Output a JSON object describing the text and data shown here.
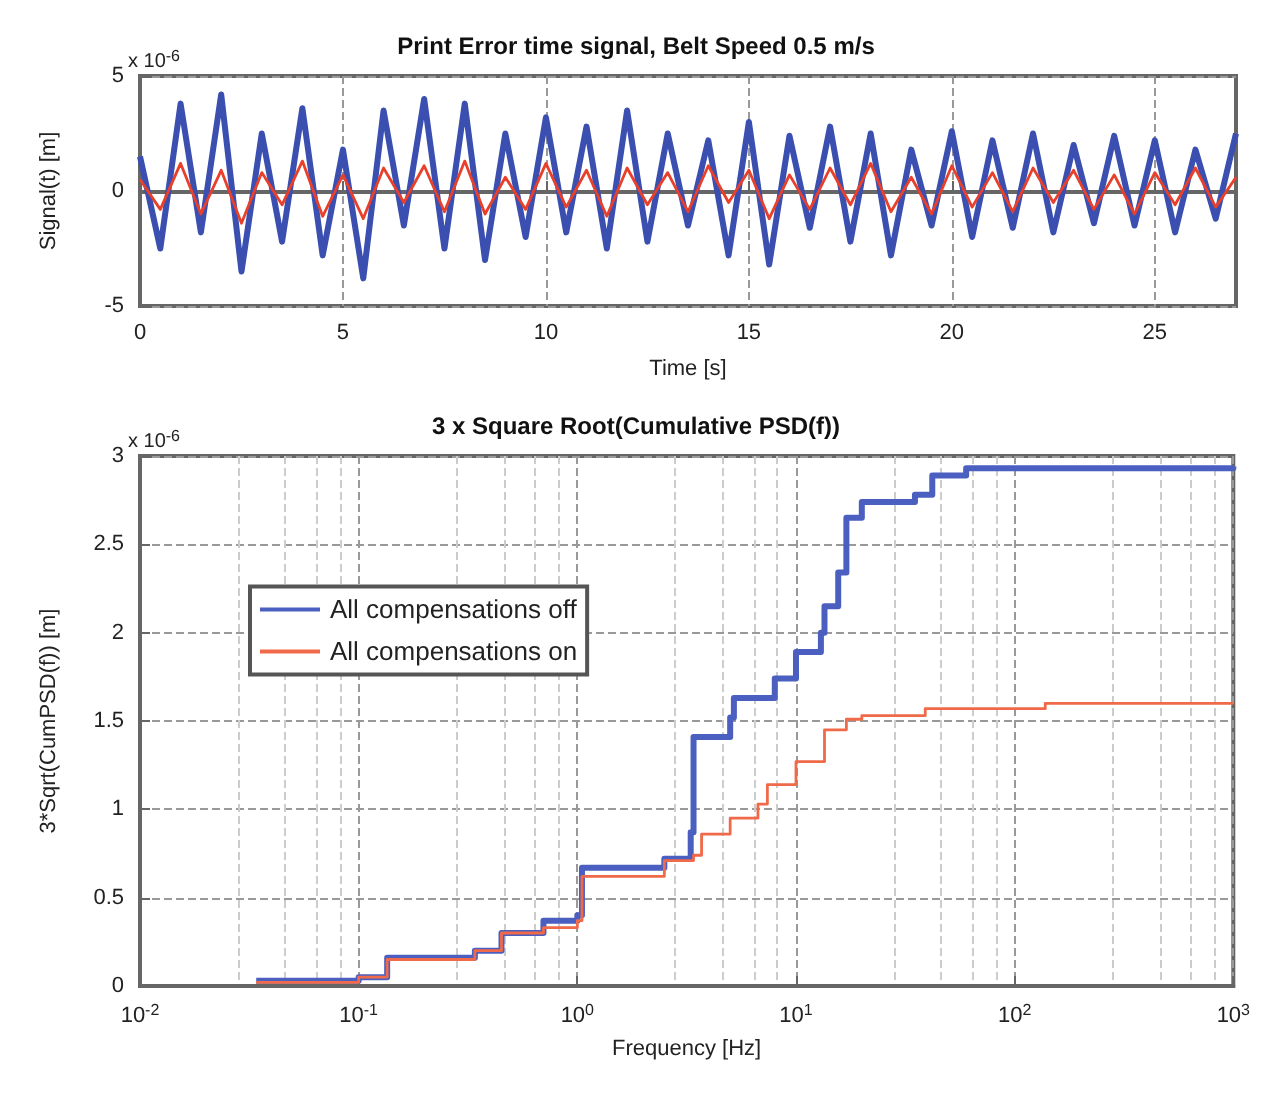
{
  "chart_data": [
    {
      "type": "line",
      "title": "Print Error time signal, Belt Speed 0.5 m/s",
      "xlabel": "Time [s]",
      "ylabel": "Signal(t) [m]",
      "annotations": [
        "x 10$^{-6}$"
      ],
      "x": [
        0,
        0.5,
        1,
        1.5,
        2,
        2.5,
        3,
        3.5,
        4,
        4.5,
        5,
        5.5,
        6,
        6.5,
        7,
        7.5,
        8,
        8.5,
        9,
        9.5,
        10,
        10.5,
        11,
        11.5,
        12,
        12.5,
        13,
        13.5,
        14,
        14.5,
        15,
        15.5,
        16,
        16.5,
        17,
        17.5,
        18,
        18.5,
        19,
        19.5,
        20,
        20.5,
        21,
        21.5,
        22,
        22.5,
        23,
        23.5,
        24,
        24.5,
        25,
        25.5,
        26,
        26.5,
        27
      ],
      "series": [
        {
          "color": "#3a4fb0",
          "values": [
            1.5,
            -2.5,
            3.8,
            -1.8,
            4.2,
            -3.5,
            2.5,
            -2.2,
            3.6,
            -2.8,
            1.8,
            -3.8,
            3.5,
            -1.5,
            4,
            -2.5,
            3.8,
            -3,
            2.5,
            -2,
            3.2,
            -1.8,
            2.8,
            -2.5,
            3.5,
            -2.2,
            2.5,
            -1.5,
            2.2,
            -2.8,
            3,
            -3.2,
            2.4,
            -1.6,
            2.8,
            -2.2,
            2.5,
            -2.8,
            1.8,
            -1.5,
            2.6,
            -2,
            2.2,
            -1.6,
            2.5,
            -1.8,
            2,
            -1.4,
            2.4,
            -1.5,
            2.2,
            -1.8,
            1.8,
            -1.2,
            2.5
          ]
        },
        {
          "color": "#e8402a",
          "values": [
            0.5,
            -0.8,
            1.2,
            -1,
            0.9,
            -1.4,
            0.8,
            -0.6,
            1.3,
            -1.1,
            0.7,
            -1.2,
            1,
            -0.5,
            1.1,
            -0.9,
            1.3,
            -1,
            0.6,
            -0.8,
            1.2,
            -0.7,
            0.9,
            -1.1,
            1,
            -0.6,
            0.8,
            -0.9,
            1.1,
            -0.5,
            0.9,
            -1.2,
            0.7,
            -0.8,
            1,
            -0.6,
            1.2,
            -0.9,
            0.6,
            -1,
            1.1,
            -0.7,
            0.8,
            -0.9,
            1,
            -0.5,
            0.9,
            -0.8,
            0.7,
            -1,
            0.8,
            -0.6,
            1,
            -0.7,
            0.6
          ]
        }
      ],
      "xlim": [
        0,
        27
      ],
      "xticks": [
        0,
        5,
        10,
        15,
        20,
        25
      ],
      "ylim": [
        -5,
        5
      ],
      "yticks": [
        -5,
        0,
        5
      ],
      "grid": true,
      "legend": false,
      "line_style": "solid",
      "marker": "none"
    },
    {
      "type": "step",
      "title": "3 x Square Root(Cumulative PSD(f))",
      "xlabel": "Frequency [Hz]",
      "ylabel": "3*Sqrt(CumPSD(f)) [m]",
      "annotations": [
        "x 10$^{-6}$"
      ],
      "series": [
        {
          "name": "All compensations off",
          "color": "#4a5fc0",
          "x": [
            0.034,
            0.074,
            0.1,
            0.135,
            0.34,
            0.45,
            0.7,
            1.0,
            1.05,
            2.5,
            3.3,
            3.4,
            5,
            5.2,
            8,
            10,
            13,
            13.5,
            15.6,
            17,
            20,
            35,
            42,
            60,
            1000
          ],
          "values": [
            0.03,
            0.03,
            0.05,
            0.16,
            0.2,
            0.3,
            0.37,
            0.4,
            0.67,
            0.72,
            0.87,
            1.41,
            1.52,
            1.63,
            1.74,
            1.89,
            2.0,
            2.15,
            2.34,
            2.65,
            2.74,
            2.78,
            2.89,
            2.93,
            2.94
          ]
        },
        {
          "name": "All compensations on",
          "color": "#f06a4a",
          "x": [
            0.034,
            0.074,
            0.1,
            0.135,
            0.34,
            0.45,
            0.7,
            1.0,
            1.05,
            2.5,
            3.4,
            3.7,
            5,
            6.7,
            7.4,
            10,
            13.5,
            17,
            20,
            39,
            138,
            1000
          ],
          "values": [
            0.02,
            0.02,
            0.05,
            0.15,
            0.2,
            0.3,
            0.33,
            0.37,
            0.62,
            0.71,
            0.74,
            0.86,
            0.95,
            1.03,
            1.14,
            1.27,
            1.45,
            1.51,
            1.53,
            1.57,
            1.6,
            1.6
          ]
        }
      ],
      "xlim": [
        0.01,
        1000
      ],
      "xticks": [
        {
          "value": 0.01,
          "label": "10$^{-2}$"
        },
        {
          "value": 0.1,
          "label": "10$^{-1}$"
        },
        {
          "value": 1,
          "label": "10$^{0}$"
        },
        {
          "value": 10,
          "label": "10$^{1}$"
        },
        {
          "value": 100,
          "label": "10$^{2}$"
        },
        {
          "value": 1000,
          "label": "10$^{3}$"
        }
      ],
      "ylim": [
        0,
        3
      ],
      "yticks": [
        0,
        0.5,
        1,
        1.5,
        2,
        2.5,
        3
      ],
      "log": "x",
      "grid": true,
      "legend": "left",
      "line_style": "solid",
      "marker": "none"
    }
  ]
}
